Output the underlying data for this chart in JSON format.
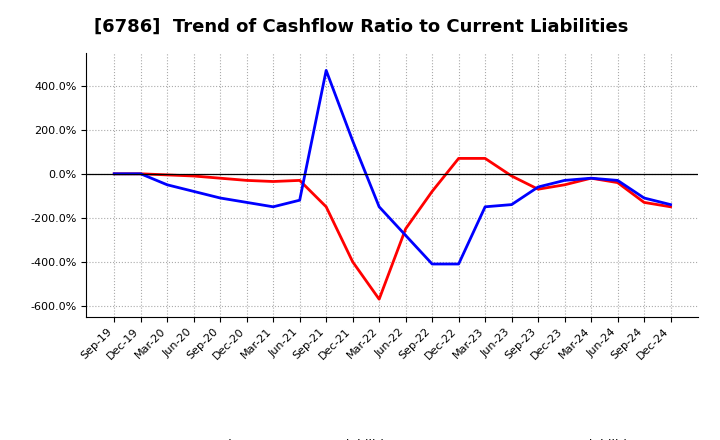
{
  "title": "[6786]  Trend of Cashflow Ratio to Current Liabilities",
  "x_labels": [
    "Sep-19",
    "Dec-19",
    "Mar-20",
    "Jun-20",
    "Sep-20",
    "Dec-20",
    "Mar-21",
    "Jun-21",
    "Sep-21",
    "Dec-21",
    "Mar-22",
    "Jun-22",
    "Sep-22",
    "Dec-22",
    "Mar-23",
    "Jun-23",
    "Sep-23",
    "Dec-23",
    "Mar-24",
    "Jun-24",
    "Sep-24",
    "Dec-24"
  ],
  "operating_cf": [
    0.0,
    0.0,
    -5.0,
    -10.0,
    -20.0,
    -30.0,
    -35.0,
    -30.0,
    -150.0,
    -400.0,
    -570.0,
    -250.0,
    -80.0,
    70.0,
    70.0,
    -10.0,
    -70.0,
    -50.0,
    -20.0,
    -40.0,
    -130.0,
    -150.0
  ],
  "free_cf": [
    0.0,
    0.0,
    -50.0,
    -80.0,
    -110.0,
    -130.0,
    -150.0,
    -120.0,
    470.0,
    150.0,
    -150.0,
    -280.0,
    -410.0,
    -410.0,
    -150.0,
    -140.0,
    -60.0,
    -30.0,
    -20.0,
    -30.0,
    -110.0,
    -140.0
  ],
  "ylim": [
    -650.0,
    550.0
  ],
  "yticks": [
    -600.0,
    -400.0,
    -200.0,
    0.0,
    200.0,
    400.0
  ],
  "operating_color": "#ff0000",
  "free_color": "#0000ff",
  "background_color": "#ffffff",
  "plot_bg_color": "#ffffff",
  "grid_color": "#aaaaaa",
  "legend_operating": "Operating CF to Current Liabilities",
  "legend_free": "Free CF to Current Liabilities",
  "title_fontsize": 13,
  "tick_fontsize": 8,
  "legend_fontsize": 9
}
